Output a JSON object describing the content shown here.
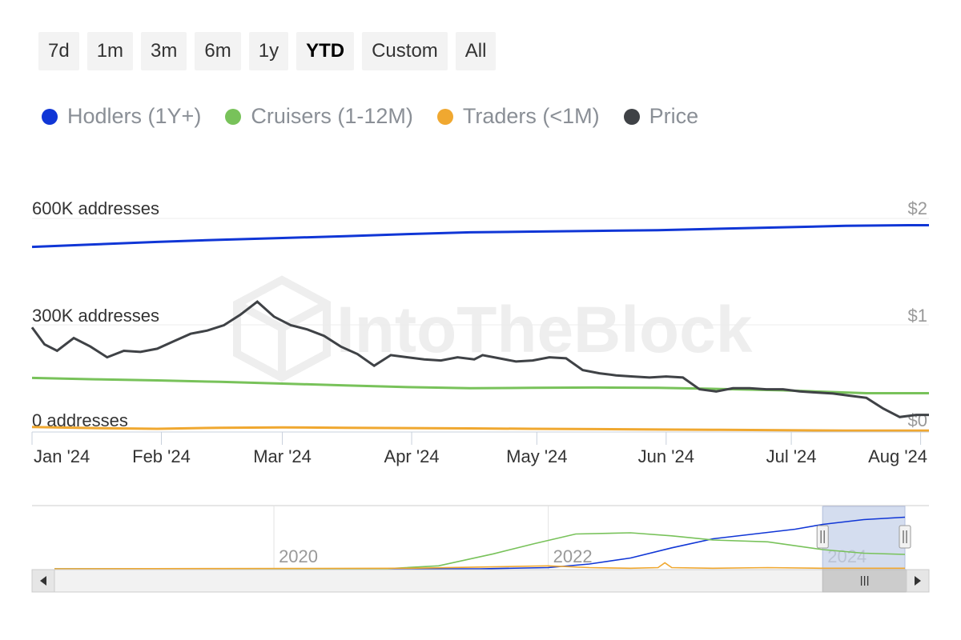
{
  "range_selector": {
    "buttons": [
      "7d",
      "1m",
      "3m",
      "6m",
      "1y",
      "YTD",
      "Custom",
      "All"
    ],
    "active": "YTD"
  },
  "watermark": "IntoTheBlock",
  "chart_data": {
    "type": "line",
    "legend_placement": "top-left",
    "series": [
      {
        "name": "Hodlers (1Y+)",
        "color": "#1036d6",
        "axis": "left",
        "x": [
          0,
          15,
          30,
          45,
          60,
          75,
          90,
          105,
          120,
          135,
          150,
          165,
          180,
          195,
          210,
          215
        ],
        "values": [
          520000,
          527000,
          534000,
          540000,
          545000,
          550000,
          556000,
          561000,
          563000,
          565000,
          567000,
          571000,
          575000,
          579000,
          581000,
          581000
        ]
      },
      {
        "name": "Cruisers (1-12M)",
        "color": "#78c25a",
        "axis": "left",
        "x": [
          0,
          15,
          30,
          45,
          60,
          75,
          90,
          105,
          120,
          135,
          150,
          165,
          180,
          195,
          200,
          215
        ],
        "values": [
          152000,
          148000,
          145000,
          141000,
          136000,
          131000,
          126000,
          123000,
          124000,
          125000,
          124000,
          121000,
          117000,
          111000,
          109000,
          109000
        ]
      },
      {
        "name": "Traders (<1M)",
        "color": "#f0a830",
        "axis": "left",
        "x": [
          0,
          15,
          30,
          45,
          60,
          75,
          90,
          105,
          120,
          135,
          150,
          165,
          180,
          195,
          215
        ],
        "values": [
          14000,
          11000,
          9000,
          12000,
          13000,
          12000,
          11000,
          10000,
          9000,
          8000,
          7000,
          6000,
          5000,
          4000,
          4000
        ]
      },
      {
        "name": "Price",
        "color": "#3f4246",
        "axis": "right",
        "x": [
          0,
          3,
          6,
          10,
          14,
          18,
          22,
          26,
          30,
          34,
          38,
          42,
          46,
          50,
          54,
          58,
          62,
          66,
          70,
          74,
          78,
          82,
          86,
          90,
          94,
          98,
          102,
          106,
          108,
          112,
          116,
          120,
          124,
          128,
          132,
          136,
          140,
          144,
          148,
          152,
          156,
          160,
          164,
          168,
          172,
          176,
          180,
          184,
          188,
          192,
          196,
          200,
          204,
          208,
          212,
          215
        ],
        "values": [
          0.98,
          0.82,
          0.76,
          0.88,
          0.8,
          0.7,
          0.76,
          0.75,
          0.78,
          0.85,
          0.92,
          0.95,
          1.0,
          1.1,
          1.22,
          1.08,
          1.0,
          0.96,
          0.9,
          0.8,
          0.73,
          0.62,
          0.72,
          0.7,
          0.68,
          0.67,
          0.7,
          0.68,
          0.72,
          0.69,
          0.66,
          0.67,
          0.7,
          0.69,
          0.58,
          0.55,
          0.53,
          0.52,
          0.51,
          0.52,
          0.51,
          0.4,
          0.38,
          0.41,
          0.41,
          0.4,
          0.4,
          0.38,
          0.37,
          0.36,
          0.34,
          0.32,
          0.22,
          0.14,
          0.16,
          0.16
        ]
      }
    ],
    "y_axis_left": {
      "ticks": [
        "600K addresses",
        "300K addresses",
        "0 addresses"
      ],
      "range": [
        0,
        600000
      ]
    },
    "y_axis_right": {
      "ticks": [
        "$2",
        "$1",
        "$0"
      ],
      "range": [
        0,
        2
      ]
    },
    "x_axis": {
      "range": [
        0,
        215
      ],
      "tick_values": [
        0,
        31,
        60,
        91,
        121,
        152,
        182,
        213
      ],
      "tick_labels": [
        "Jan '24",
        "Feb '24",
        "Mar '24",
        "Apr '24",
        "May '24",
        "Jun '24",
        "Jul '24",
        "Aug '24"
      ]
    },
    "grid": true,
    "navigator": {
      "year_labels": [
        "2020",
        "2022",
        "2024"
      ],
      "year_positions": [
        2020,
        2022,
        2024
      ],
      "range": [
        2018.4,
        2024.6
      ],
      "selected_range": [
        2024.0,
        2024.6
      ],
      "series": [
        {
          "name": "Hodlers (1Y+)",
          "color": "#1036d6",
          "x": [
            2018.4,
            2021.5,
            2022.0,
            2022.3,
            2022.6,
            2022.9,
            2023.2,
            2023.5,
            2023.8,
            2024.0,
            2024.3,
            2024.6
          ],
          "values": [
            0.0,
            0.0,
            0.02,
            0.08,
            0.18,
            0.35,
            0.5,
            0.58,
            0.66,
            0.74,
            0.82,
            0.86
          ]
        },
        {
          "name": "Cruisers (1-12M)",
          "color": "#78c25a",
          "x": [
            2018.4,
            2020.8,
            2021.2,
            2021.6,
            2021.9,
            2022.2,
            2022.6,
            2022.9,
            2023.2,
            2023.6,
            2024.0,
            2024.3,
            2024.6
          ],
          "values": [
            0.0,
            0.0,
            0.05,
            0.25,
            0.42,
            0.58,
            0.6,
            0.55,
            0.48,
            0.45,
            0.32,
            0.26,
            0.24
          ]
        },
        {
          "name": "Traders (<1M)",
          "color": "#f0a830",
          "x": [
            2018.4,
            2021.0,
            2021.5,
            2022.0,
            2022.3,
            2022.6,
            2022.8,
            2022.85,
            2022.9,
            2023.2,
            2023.6,
            2024.0,
            2024.6
          ],
          "values": [
            0.0,
            0.01,
            0.03,
            0.05,
            0.02,
            0.01,
            0.02,
            0.1,
            0.02,
            0.01,
            0.02,
            0.01,
            0.01
          ]
        }
      ]
    }
  }
}
